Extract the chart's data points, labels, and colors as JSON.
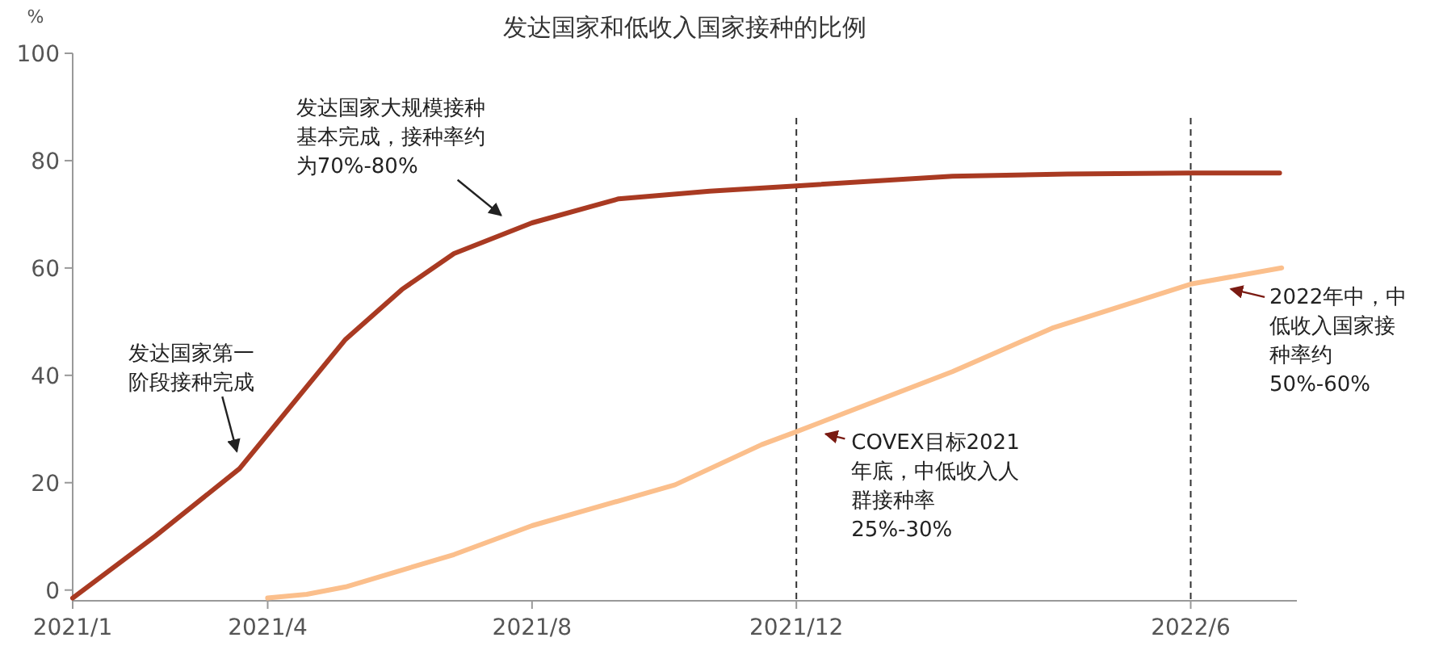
{
  "chart_data": {
    "type": "line",
    "title": "发达国家和低收入国家接种的比例",
    "ylabel": "%",
    "xlim": [
      "2021-01-01",
      "2022-07-20"
    ],
    "xticks": [
      {
        "value": "2021-01-01",
        "label": "2021/1"
      },
      {
        "value": "2021-04-01",
        "label": "2021/4"
      },
      {
        "value": "2021-08-01",
        "label": "2021/8"
      },
      {
        "value": "2021-12-01",
        "label": "2021/12"
      },
      {
        "value": "2022-06-01",
        "label": "2022/6"
      }
    ],
    "ylim": [
      -2,
      100
    ],
    "yticks": [
      0,
      20,
      40,
      60,
      80,
      100
    ],
    "grid": false,
    "line_style": "solid",
    "marker": "none",
    "series": [
      {
        "color": "#a93a22",
        "x": [
          "2021-01-01",
          "2021-02-08",
          "2021-03-19",
          "2021-05-07",
          "2021-06-02",
          "2021-06-26",
          "2021-08-01",
          "2021-09-10",
          "2021-10-22",
          "2021-12-01",
          "2022-02-11",
          "2022-04-05",
          "2022-06-01",
          "2022-07-12"
        ],
        "values": [
          -1.5,
          10,
          22.6,
          46.7,
          56,
          62.7,
          68.4,
          72.9,
          74.3,
          75.3,
          77.1,
          77.5,
          77.7,
          77.7
        ]
      },
      {
        "color": "#fbbf8c",
        "x": [
          "2021-04-01",
          "2021-04-19",
          "2021-05-07",
          "2021-06-26",
          "2021-08-01",
          "2021-10-06",
          "2021-11-15",
          "2021-12-01",
          "2022-02-11",
          "2022-03-29",
          "2022-06-01",
          "2022-07-13"
        ],
        "values": [
          -1.5,
          -0.8,
          0.6,
          6.6,
          12,
          19.6,
          27.1,
          29.5,
          40.7,
          48.8,
          57,
          60
        ]
      }
    ],
    "ref_lines": [
      {
        "axis": "x",
        "value": "2021-12-01",
        "color": "#333333",
        "line_style": "dashed"
      },
      {
        "axis": "x",
        "value": "2022-06-01",
        "color": "#333333",
        "line_style": "dashed"
      }
    ],
    "annotations": [
      {
        "text": "发达国家第一阶段接种完成",
        "x": "2021-03-20",
        "y": 24
      },
      {
        "text": "发达国家大规模接种基本完成，接种率约为70%-80%",
        "x": "2021-07-20",
        "y": 68
      },
      {
        "text": "COVEX目标2021年底，中低收入人群接种率25%-30%",
        "x": "2021-12-10",
        "y": 30
      },
      {
        "text": "2022年中，中低收入国家接种率约50%-60%",
        "x": "2022-06-15",
        "y": 57
      }
    ]
  }
}
